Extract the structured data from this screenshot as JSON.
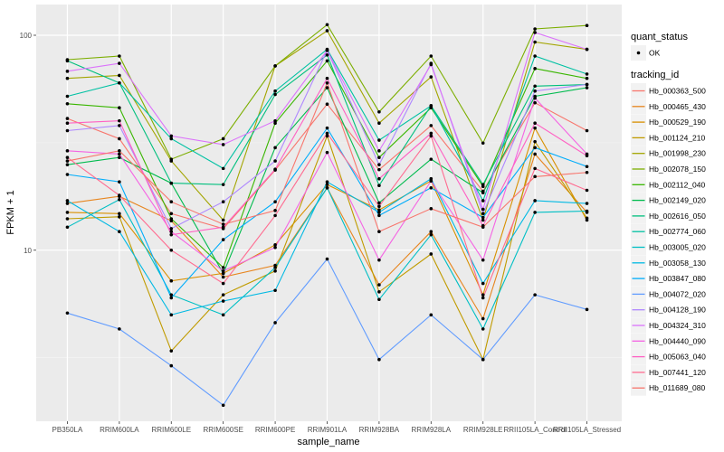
{
  "chart_data": {
    "type": "line",
    "title": "",
    "xlabel": "sample_name",
    "ylabel": "FPKM + 1",
    "yscale": "log10",
    "ylim": [
      1.6,
      139
    ],
    "yticks": [
      10,
      100
    ],
    "ytick_labels": [
      "10",
      "100"
    ],
    "grid": true,
    "categories": [
      "PB350LA",
      "RRIM600LA",
      "RRIM600LE",
      "RRIM600SE",
      "RRIM600PE",
      "RRIM901LA",
      "RRIM928BA",
      "RRIM928LA",
      "RRIM928LE",
      "RRII105LA_Control",
      "RRII105LA_Stressed"
    ],
    "legend_shape": {
      "title": "quant_status",
      "entries": [
        "OK"
      ]
    },
    "legend_color": {
      "title": "tracking_id",
      "placement": "right"
    },
    "series": [
      {
        "name": "Hb_000363_500",
        "color": "#F8766D",
        "values": [
          41.0,
          33.0,
          14.8,
          12.6,
          23.6,
          47.8,
          23.7,
          38.0,
          18.8,
          48.5,
          36.0
        ]
      },
      {
        "name": "Hb_000465_430",
        "color": "#E7851E",
        "values": [
          16.5,
          17.8,
          13.7,
          7.5,
          8.5,
          19.5,
          6.9,
          12.2,
          4.8,
          28.0,
          15.0
        ]
      },
      {
        "name": "Hb_000529_190",
        "color": "#D89000",
        "values": [
          15.0,
          14.8,
          7.2,
          7.8,
          10.6,
          20.2,
          15.4,
          21.0,
          6.2,
          37.0,
          13.8
        ]
      },
      {
        "name": "Hb_001124_210",
        "color": "#C09B00",
        "values": [
          14.0,
          14.3,
          3.4,
          6.2,
          8.0,
          34.0,
          6.4,
          9.6,
          3.1,
          32.0,
          14.1
        ]
      },
      {
        "name": "Hb_001998_230",
        "color": "#A3A500",
        "values": [
          63.0,
          65.0,
          26.0,
          13.8,
          72.0,
          105.0,
          39.0,
          64.0,
          13.8,
          93.0,
          86.0
        ]
      },
      {
        "name": "Hb_002078_150",
        "color": "#7CAE00",
        "values": [
          77.0,
          80.0,
          26.5,
          33.0,
          72.0,
          112.0,
          44.0,
          80.0,
          31.5,
          107.0,
          111.0
        ]
      },
      {
        "name": "Hb_002112_040",
        "color": "#39B600",
        "values": [
          48.0,
          46.0,
          14.0,
          8.3,
          39.0,
          76.0,
          27.0,
          46.0,
          19.8,
          70.0,
          63.0
        ]
      },
      {
        "name": "Hb_002149_020",
        "color": "#00BB4E",
        "values": [
          25.0,
          27.0,
          20.5,
          7.8,
          30.0,
          57.0,
          16.6,
          26.5,
          18.5,
          52.0,
          57.0
        ]
      },
      {
        "name": "Hb_002616_050",
        "color": "#00BF7D",
        "values": [
          76.0,
          60.0,
          20.5,
          20.2,
          53.0,
          81.0,
          20.0,
          47.0,
          20.2,
          58.0,
          59.0
        ]
      },
      {
        "name": "Hb_002774_060",
        "color": "#00C1A3",
        "values": [
          52.0,
          60.0,
          33.0,
          24.0,
          55.0,
          86.0,
          32.5,
          47.0,
          17.0,
          80.0,
          66.0
        ]
      },
      {
        "name": "Hb_003005_020",
        "color": "#00BFC4",
        "values": [
          12.8,
          17.2,
          6.2,
          5.0,
          8.3,
          19.5,
          5.9,
          11.8,
          4.3,
          15.0,
          15.2
        ]
      },
      {
        "name": "Hb_003058_130",
        "color": "#00B9E3",
        "values": [
          17.0,
          12.2,
          5.0,
          5.8,
          6.5,
          20.8,
          15.0,
          21.5,
          7.0,
          17.0,
          16.5
        ]
      },
      {
        "name": "Hb_003847_080",
        "color": "#00ADFA",
        "values": [
          22.5,
          20.8,
          6.0,
          11.2,
          16.8,
          37.0,
          14.5,
          19.5,
          14.2,
          30.0,
          24.5
        ]
      },
      {
        "name": "Hb_004072_020",
        "color": "#619CFF",
        "values": [
          5.1,
          4.3,
          2.9,
          1.9,
          4.6,
          9.1,
          3.1,
          5.0,
          3.1,
          6.2,
          5.3
        ]
      },
      {
        "name": "Hb_004128_190",
        "color": "#AE87FF",
        "values": [
          36.0,
          38.0,
          12.6,
          16.8,
          26.0,
          85.0,
          25.0,
          74.0,
          14.8,
          55.0,
          59.0
        ]
      },
      {
        "name": "Hb_004324_310",
        "color": "#DB72FB",
        "values": [
          68.0,
          74.0,
          34.0,
          31.0,
          40.0,
          85.0,
          29.0,
          73.0,
          15.5,
          103.0,
          86.0
        ]
      },
      {
        "name": "Hb_004440_090",
        "color": "#F564E3",
        "values": [
          29.0,
          28.0,
          12.2,
          8.0,
          10.3,
          28.5,
          9.0,
          21.0,
          9.0,
          51.0,
          28.0
        ]
      },
      {
        "name": "Hb_005063_040",
        "color": "#FF61C3",
        "values": [
          39.0,
          40.0,
          11.8,
          12.8,
          23.8,
          63.0,
          21.5,
          35.0,
          13.0,
          39.0,
          27.5
        ]
      },
      {
        "name": "Hb_007441_120",
        "color": "#FF6C91",
        "values": [
          27.0,
          18.0,
          10.0,
          7.0,
          14.5,
          35.0,
          16.0,
          34.0,
          6.0,
          24.0,
          19.0
        ]
      },
      {
        "name": "Hb_011689_080",
        "color": "#F8766D",
        "values": [
          26.0,
          29.0,
          16.8,
          13.2,
          15.3,
          60.0,
          12.2,
          15.6,
          12.8,
          22.0,
          23.0
        ]
      }
    ]
  }
}
